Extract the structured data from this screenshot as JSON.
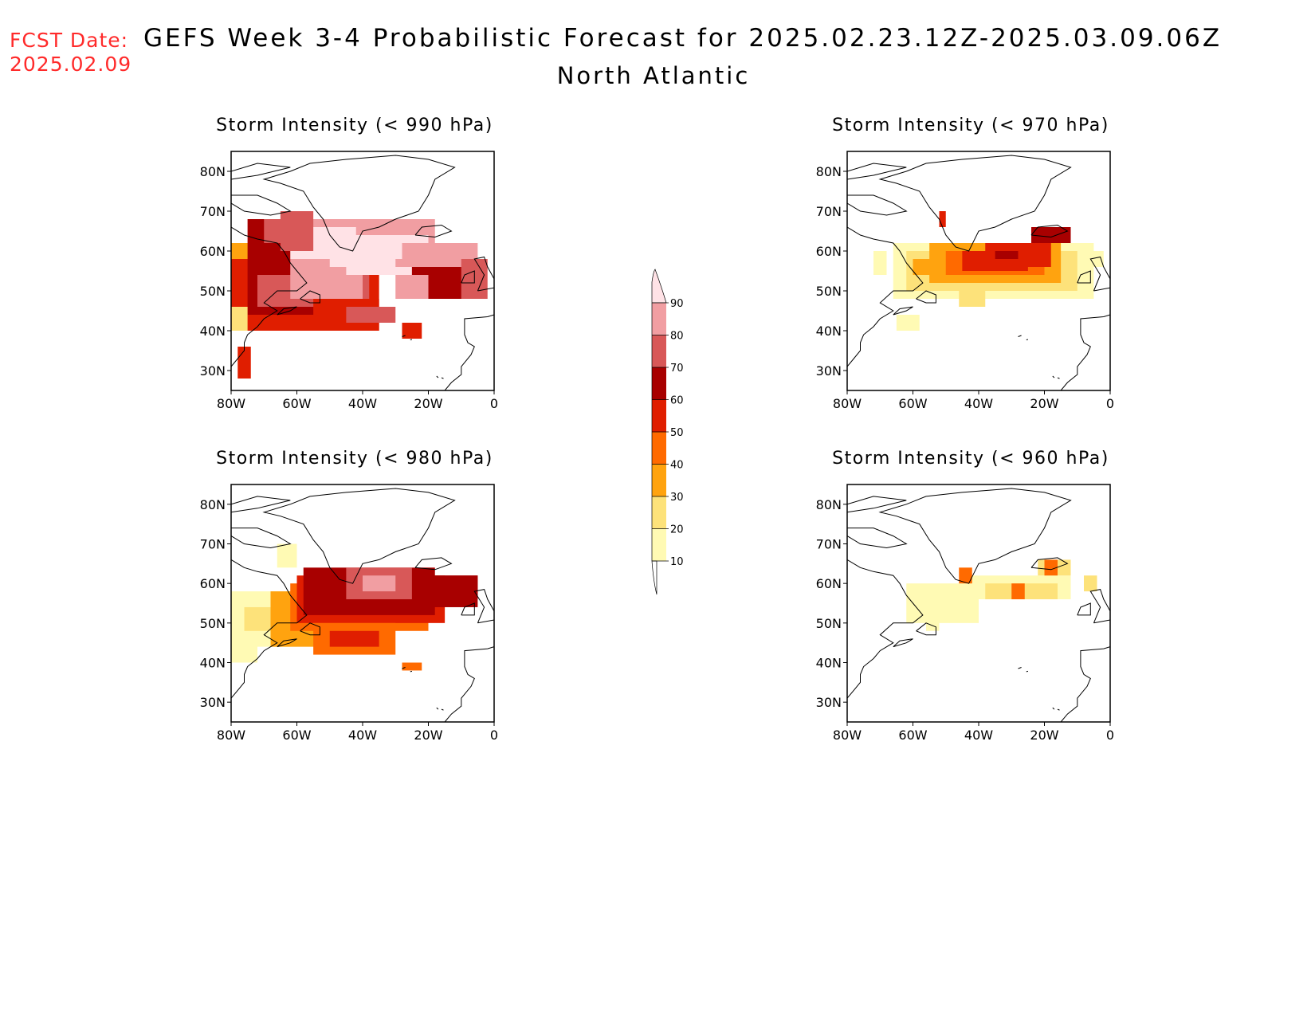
{
  "header": {
    "fcst_label": "FCST Date:",
    "fcst_date": "2025.02.09",
    "title": "GEFS Week 3-4 Probabilistic Forecast for 2025.02.23.12Z-2025.03.09.06Z",
    "subtitle": "North Atlantic"
  },
  "colorbar": {
    "levels": [
      "10",
      "20",
      "30",
      "40",
      "50",
      "60",
      "70",
      "80",
      "90"
    ],
    "colors": [
      "#fffab4",
      "#fde27a",
      "#ffa30f",
      "#ff6a00",
      "#e01e00",
      "#a80000",
      "#d85858",
      "#f19ea2",
      "#ffe2e6"
    ]
  },
  "map": {
    "lon_labels": [
      "80W",
      "60W",
      "40W",
      "20W",
      "0"
    ],
    "lat_labels": [
      "80N",
      "70N",
      "60N",
      "50N",
      "40N",
      "30N"
    ]
  },
  "panels": [
    {
      "id": "p990",
      "title": "Storm Intensity (< 990 hPa)"
    },
    {
      "id": "p970",
      "title": "Storm Intensity (< 970 hPa)"
    },
    {
      "id": "p980",
      "title": "Storm Intensity (< 980 hPa)"
    },
    {
      "id": "p960",
      "title": "Storm Intensity (< 960 hPa)"
    }
  ]
}
